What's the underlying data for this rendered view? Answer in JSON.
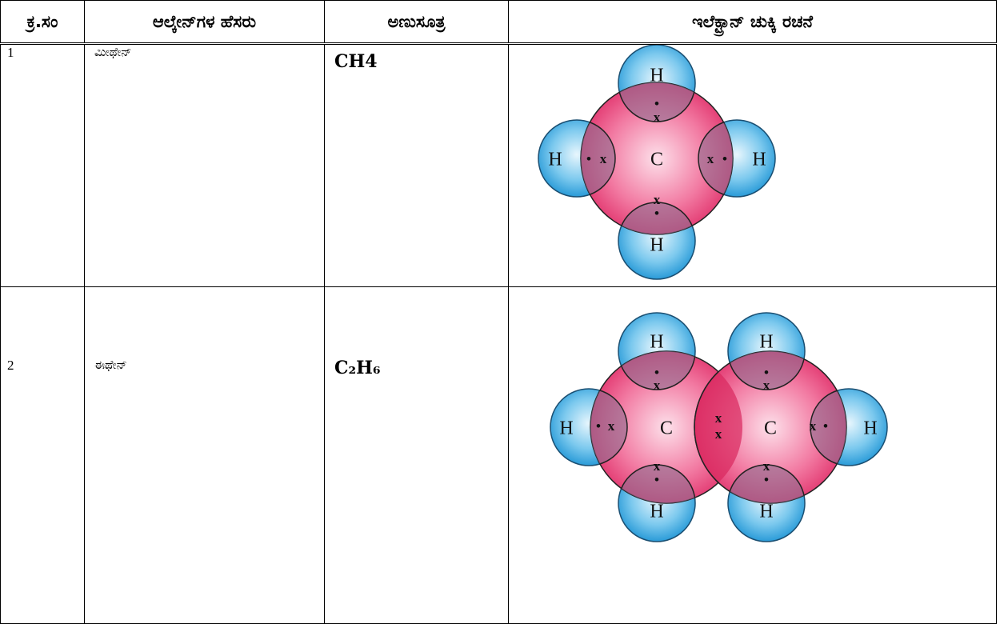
{
  "table": {
    "header": [
      "ಕ್ರ.ಸಂ",
      "ಆಲ್ಕೇನ್‌ಗಳ ಹೆಸರು",
      "ಅಣುಸೂತ್ರ",
      "ಇಲೆಕ್ಟ್ರಾನ್ ಚುಕ್ಕಿ ರಚನೆ"
    ],
    "rows": [
      {
        "number": "1",
        "name": "ಮೀಥೇನ್",
        "formula": "CH4",
        "diagram": {
          "atoms": [
            "H",
            "H",
            "H",
            "H",
            "C"
          ],
          "electrons": [
            "•",
            "x",
            "•",
            "x",
            "x",
            "•",
            "x",
            "•"
          ]
        }
      },
      {
        "number": "2",
        "name": "ಈಥೇನ್",
        "formula": "C₂H₆",
        "diagram": {
          "atoms": [
            "H",
            "H",
            "H",
            "H",
            "H",
            "H",
            "C",
            "C"
          ],
          "electrons": [
            "•",
            "x",
            "•",
            "x",
            "•",
            "x",
            "x",
            "x",
            "x",
            "•",
            "x",
            "•",
            "x",
            "•"
          ]
        }
      }
    ]
  }
}
